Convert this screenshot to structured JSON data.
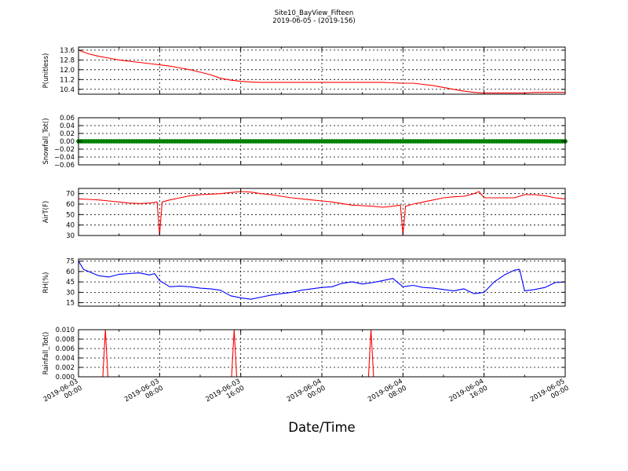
{
  "header": {
    "title": "Site10_BayView_Fifteen",
    "subtitle": "2019-06-05 - (2019-156)"
  },
  "x_axis": {
    "label": "Date/Time",
    "tick_labels": [
      [
        "2019-06-03",
        "00:00"
      ],
      [
        "2019-06-03",
        "08:00"
      ],
      [
        "2019-06-03",
        "16:00"
      ],
      [
        "2019-06-04",
        "00:00"
      ],
      [
        "2019-06-04",
        "08:00"
      ],
      [
        "2019-06-04",
        "16:00"
      ],
      [
        "2019-06-05",
        "00:00"
      ]
    ]
  },
  "chart_data": [
    {
      "type": "line",
      "ylabel": "P(unitless)",
      "color": "#ff0000",
      "ylim": [
        10.0,
        13.85
      ],
      "yticks": [
        "13.6",
        "12.8",
        "12.0",
        "11.2",
        "10.4"
      ],
      "ytick_values": [
        13.6,
        12.8,
        12.0,
        11.2,
        10.4
      ],
      "xlim_hours": [
        0,
        48
      ],
      "x_hours": [
        0,
        1,
        2,
        3,
        4,
        5,
        6,
        7,
        8,
        9,
        10,
        11,
        12,
        13,
        14,
        15,
        16,
        17,
        18,
        19,
        20,
        21,
        22,
        23,
        24,
        25,
        26,
        27,
        28,
        29,
        30,
        31,
        32,
        33,
        34,
        35,
        36,
        37,
        38,
        39,
        40,
        41,
        42,
        43,
        44,
        45,
        46,
        47,
        48
      ],
      "values": [
        13.6,
        13.3,
        13.1,
        12.95,
        12.8,
        12.7,
        12.6,
        12.5,
        12.4,
        12.3,
        12.15,
        12.0,
        11.8,
        11.6,
        11.3,
        11.15,
        11.05,
        11.0,
        10.97,
        10.97,
        10.97,
        10.97,
        10.97,
        10.97,
        10.97,
        10.97,
        10.97,
        10.97,
        10.97,
        10.97,
        10.97,
        10.93,
        10.9,
        10.9,
        10.8,
        10.7,
        10.55,
        10.4,
        10.25,
        10.15,
        10.1,
        10.1,
        10.1,
        10.1,
        10.1,
        10.15,
        10.15,
        10.15,
        10.15
      ]
    },
    {
      "type": "scatter",
      "ylabel": "Snowfall_Tot()",
      "color": "#008000",
      "ylim": [
        -0.06,
        0.06
      ],
      "yticks": [
        "0.06",
        "0.04",
        "0.02",
        "0.00",
        "−0.02",
        "−0.04",
        "−0.06"
      ],
      "ytick_values": [
        0.06,
        0.04,
        0.02,
        0.0,
        -0.02,
        -0.04,
        -0.06
      ],
      "xlim_hours": [
        0,
        48
      ],
      "x_start_hours": 0,
      "x_end_hours": 48,
      "x_step_hours": 0.25,
      "constant_value": 0.0
    },
    {
      "type": "line",
      "ylabel": "AirT(F)",
      "color": "#ff0000",
      "ylim": [
        30,
        75
      ],
      "yticks": [
        "70",
        "60",
        "50",
        "40",
        "30"
      ],
      "ytick_values": [
        70,
        60,
        50,
        40,
        30
      ],
      "xlim_hours": [
        0,
        48
      ],
      "x_hours": [
        0,
        1,
        2,
        3,
        4,
        5,
        6,
        7,
        7.75,
        8,
        8.25,
        9,
        10,
        11,
        12,
        13,
        14,
        15,
        16,
        17,
        18,
        19,
        20,
        21,
        22,
        23,
        24,
        25,
        26,
        27,
        28,
        29,
        30,
        31,
        31.75,
        32,
        32.25,
        33,
        34,
        35,
        36,
        37,
        38,
        39,
        39.5,
        40,
        41,
        42,
        43,
        44,
        45,
        46,
        47,
        48
      ],
      "values": [
        65,
        64.5,
        64,
        63,
        62,
        61,
        60.5,
        61,
        62,
        31,
        62,
        64,
        66,
        68,
        69,
        69.5,
        70,
        71,
        72,
        71.5,
        70,
        69,
        67.5,
        66,
        65,
        64,
        63,
        62,
        60.5,
        59,
        58.5,
        58,
        57,
        58,
        59,
        31,
        58,
        60,
        62,
        64,
        66,
        67,
        67.5,
        70,
        72,
        66,
        66,
        66,
        66,
        69,
        69,
        68,
        66,
        65
      ]
    },
    {
      "type": "line",
      "ylabel": "RH(%)",
      "color": "#0000ff",
      "ylim": [
        10,
        78
      ],
      "yticks": [
        "75",
        "60",
        "45",
        "30",
        "15"
      ],
      "ytick_values": [
        75,
        60,
        45,
        30,
        15
      ],
      "xlim_hours": [
        0,
        48
      ],
      "x_hours": [
        0,
        0.5,
        1,
        2,
        3,
        4,
        5,
        6,
        7,
        7.5,
        8,
        9,
        10,
        11,
        12,
        13,
        14,
        15,
        16,
        17,
        18,
        19,
        20,
        21,
        22,
        23,
        24,
        25,
        26,
        27,
        28,
        29,
        30,
        31,
        32,
        33,
        34,
        35,
        36,
        37,
        38,
        39,
        40,
        41,
        42,
        43,
        43.5,
        44,
        45,
        46,
        47,
        48
      ],
      "values": [
        75,
        63,
        60,
        54,
        52,
        56,
        57,
        58,
        55,
        57,
        47,
        38,
        39,
        38,
        36,
        35,
        33,
        25,
        22,
        20,
        23,
        26,
        28,
        30,
        33,
        35,
        37,
        38,
        43,
        45,
        42,
        44,
        47,
        50,
        38,
        40,
        37,
        36,
        34,
        32,
        35,
        28,
        30,
        45,
        55,
        62,
        63,
        32,
        34,
        37,
        44,
        45
      ]
    },
    {
      "type": "line",
      "ylabel": "Rainfall_Tot()",
      "color": "#ff0000",
      "ylim": [
        0.0,
        0.01
      ],
      "yticks": [
        "0.010",
        "0.008",
        "0.006",
        "0.004",
        "0.002",
        "0.000"
      ],
      "ytick_values": [
        0.01,
        0.008,
        0.006,
        0.004,
        0.002,
        0.0
      ],
      "xlim_hours": [
        0,
        48
      ],
      "x_hours": [
        0,
        2.4,
        2.65,
        2.9,
        15.1,
        15.35,
        15.6,
        28.6,
        28.85,
        29.1,
        48
      ],
      "values": [
        0,
        0,
        0.01,
        0,
        0,
        0.01,
        0,
        0,
        0.01,
        0,
        0
      ]
    }
  ]
}
